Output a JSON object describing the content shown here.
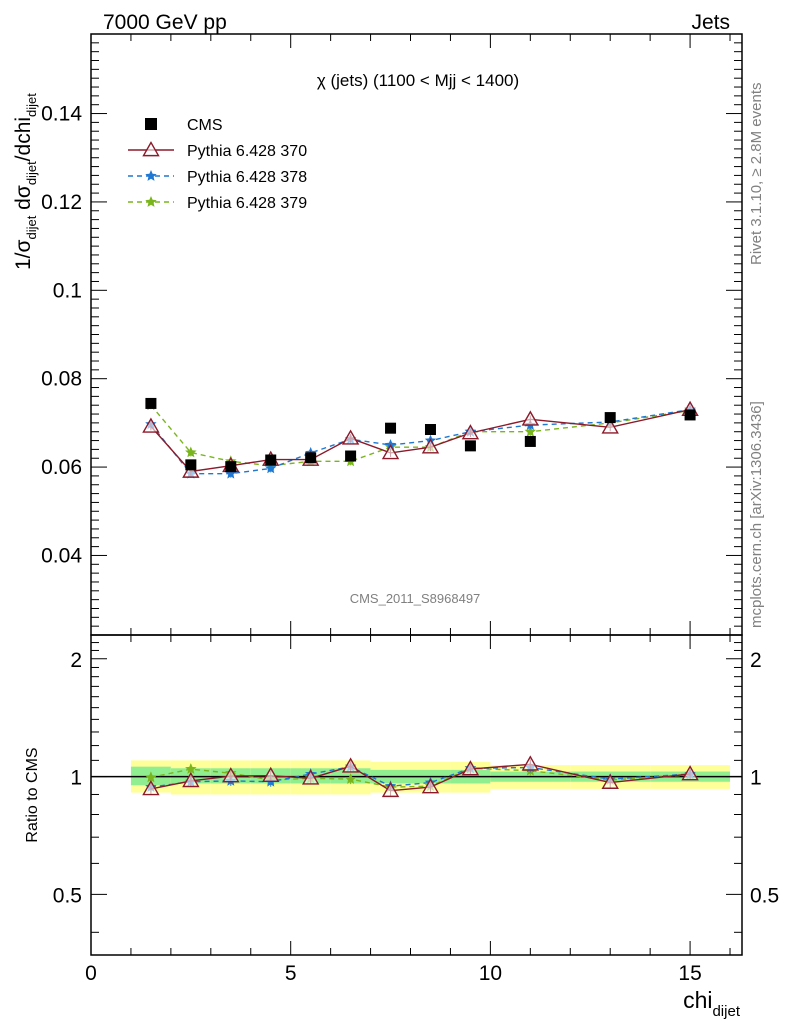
{
  "header": {
    "left": "7000 GeV pp",
    "right": "Jets",
    "plot_title": "χ (jets) (1100 < Mjj < 1400)",
    "watermark": "CMS_2011_S8968497",
    "side_top": "Rivet 3.1.10, ≥ 2.8M events",
    "side_bottom": "mcplots.cern.ch [arXiv:1306.3436]"
  },
  "axes": {
    "x_label_main": "chi",
    "x_label_sub": "dijet",
    "y_label_main": "1/σ",
    "y_label_sub1": "dijet",
    "y_label_mid": " dσ",
    "y_label_sub2": "dijet",
    "y_label_end": "/dchi",
    "y_label_sub3": "dijet",
    "ratio_ylabel": "Ratio to CMS",
    "x_ticks": [
      0,
      5,
      10,
      15
    ],
    "y_ticks": [
      0.04,
      0.06,
      0.08,
      0.1,
      0.12,
      0.14
    ],
    "y_tick_labels": [
      "0.04",
      "0.06",
      "0.08",
      "0.1",
      "0.12",
      "0.14"
    ],
    "ratio_ticks": [
      0.5,
      1,
      2
    ],
    "ratio_tick_labels": [
      "0.5",
      "1",
      "2"
    ]
  },
  "colors": {
    "cms": "#000000",
    "p370": "#8b1a2a",
    "p378": "#1f78d2",
    "p379": "#7ab51d",
    "band_outer": "#ffff99",
    "band_inner": "#90ee90"
  },
  "chart_data": {
    "type": "scatter",
    "xlim": [
      0,
      16.3
    ],
    "ylim": [
      0.022,
      0.158
    ],
    "ratio_ylim": [
      0.35,
      2.3
    ],
    "ratio_log": true,
    "legend": "top-left",
    "x": [
      1.5,
      2.5,
      3.5,
      4.5,
      5.5,
      6.5,
      7.5,
      8.5,
      9.5,
      11,
      13,
      15
    ],
    "xerr_edges": [
      [
        1,
        2
      ],
      [
        2,
        3
      ],
      [
        3,
        4
      ],
      [
        4,
        5
      ],
      [
        5,
        6
      ],
      [
        6,
        7
      ],
      [
        7,
        8
      ],
      [
        8,
        9
      ],
      [
        9,
        10
      ],
      [
        10,
        12
      ],
      [
        12,
        14
      ],
      [
        14,
        16
      ]
    ],
    "series": [
      {
        "name": "CMS",
        "key": "cms",
        "values": [
          0.0744,
          0.0605,
          0.0601,
          0.0616,
          0.0621,
          0.0625,
          0.0688,
          0.0685,
          0.0648,
          0.0658,
          0.0712,
          0.0718
        ]
      },
      {
        "name": "Pythia 6.428 370",
        "key": "p370",
        "values": [
          0.0692,
          0.059,
          0.0603,
          0.0617,
          0.0617,
          0.0665,
          0.0632,
          0.0645,
          0.0677,
          0.0708,
          0.069,
          0.073
        ]
      },
      {
        "name": "Pythia 6.428 378",
        "key": "p378",
        "values": [
          0.0697,
          0.0585,
          0.0585,
          0.0597,
          0.0632,
          0.0663,
          0.065,
          0.066,
          0.068,
          0.0695,
          0.0702,
          0.073
        ]
      },
      {
        "name": "Pythia 6.428 379",
        "key": "p379",
        "values": [
          0.074,
          0.0633,
          0.0613,
          0.0603,
          0.0613,
          0.0613,
          0.0645,
          0.0645,
          0.068,
          0.068,
          0.07,
          0.0728
        ]
      }
    ],
    "ratio_band_outer": [
      [
        0.91,
        1.1
      ],
      [
        0.9,
        1.1
      ],
      [
        0.9,
        1.1
      ],
      [
        0.9,
        1.1
      ],
      [
        0.9,
        1.1
      ],
      [
        0.9,
        1.1
      ],
      [
        0.91,
        1.09
      ],
      [
        0.91,
        1.09
      ],
      [
        0.91,
        1.09
      ],
      [
        0.93,
        1.07
      ],
      [
        0.93,
        1.07
      ],
      [
        0.93,
        1.07
      ]
    ],
    "ratio_band_inner": [
      [
        0.95,
        1.06
      ],
      [
        0.96,
        1.05
      ],
      [
        0.96,
        1.05
      ],
      [
        0.96,
        1.05
      ],
      [
        0.96,
        1.05
      ],
      [
        0.96,
        1.05
      ],
      [
        0.96,
        1.04
      ],
      [
        0.96,
        1.04
      ],
      [
        0.96,
        1.04
      ],
      [
        0.97,
        1.03
      ],
      [
        0.97,
        1.03
      ],
      [
        0.97,
        1.03
      ]
    ],
    "ratios": {
      "p370": [
        0.93,
        0.975,
        1.003,
        1.005,
        0.99,
        1.062,
        0.92,
        0.94,
        1.045,
        1.075,
        0.965,
        1.015
      ],
      "p378": [
        0.94,
        0.97,
        0.975,
        0.97,
        1.015,
        1.06,
        0.945,
        0.965,
        1.05,
        1.055,
        0.985,
        1.015
      ],
      "p379": [
        0.995,
        1.045,
        1.02,
        0.98,
        0.99,
        0.985,
        0.94,
        0.945,
        1.05,
        1.035,
        0.98,
        1.01
      ]
    }
  }
}
